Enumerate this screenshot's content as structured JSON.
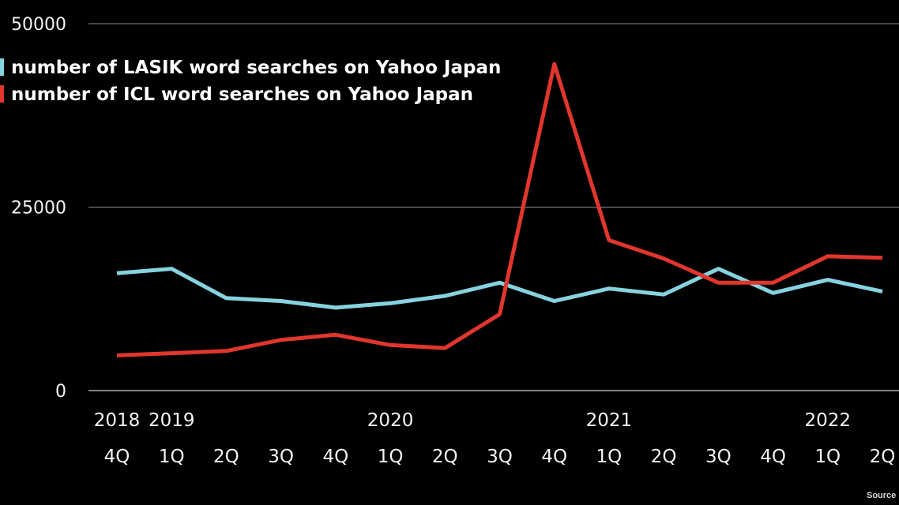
{
  "chart_data": {
    "type": "line",
    "x": [
      "2018 4Q",
      "2019 1Q",
      "2019 2Q",
      "2019 3Q",
      "2019 4Q",
      "2020 1Q",
      "2020 2Q",
      "2020 3Q",
      "2020 4Q",
      "2021 1Q",
      "2021 2Q",
      "2021 3Q",
      "2021 4Q",
      "2022 1Q",
      "2022 2Q"
    ],
    "quarter_labels": [
      "4Q",
      "1Q",
      "2Q",
      "3Q",
      "4Q",
      "1Q",
      "2Q",
      "3Q",
      "4Q",
      "1Q",
      "2Q",
      "3Q",
      "4Q",
      "1Q",
      "2Q"
    ],
    "year_labels": [
      {
        "label": "2018",
        "index": 0
      },
      {
        "label": "2019",
        "index": 1
      },
      {
        "label": "2020",
        "index": 5
      },
      {
        "label": "2021",
        "index": 9
      },
      {
        "label": "2022",
        "index": 13
      }
    ],
    "series": [
      {
        "name": "number of LASIK word searches on Yahoo Japan",
        "color": "#86d3df",
        "values": [
          16000,
          16600,
          12600,
          12200,
          11300,
          11900,
          12900,
          14700,
          12200,
          13900,
          13100,
          16600,
          13300,
          15100,
          13500
        ]
      },
      {
        "name": "number of ICL word searches on Yahoo Japan",
        "color": "#e0362d",
        "values": [
          4800,
          5100,
          5400,
          6900,
          7600,
          6200,
          5800,
          10400,
          44500,
          20500,
          18000,
          14700,
          14700,
          18300,
          18100
        ]
      }
    ],
    "yticks": [
      0,
      25000,
      50000
    ],
    "ytick_labels": [
      "0",
      "25000",
      "50000"
    ],
    "ylim": [
      0,
      50000
    ],
    "grid": true,
    "legend_position": "top-left",
    "source_label": "Source"
  }
}
